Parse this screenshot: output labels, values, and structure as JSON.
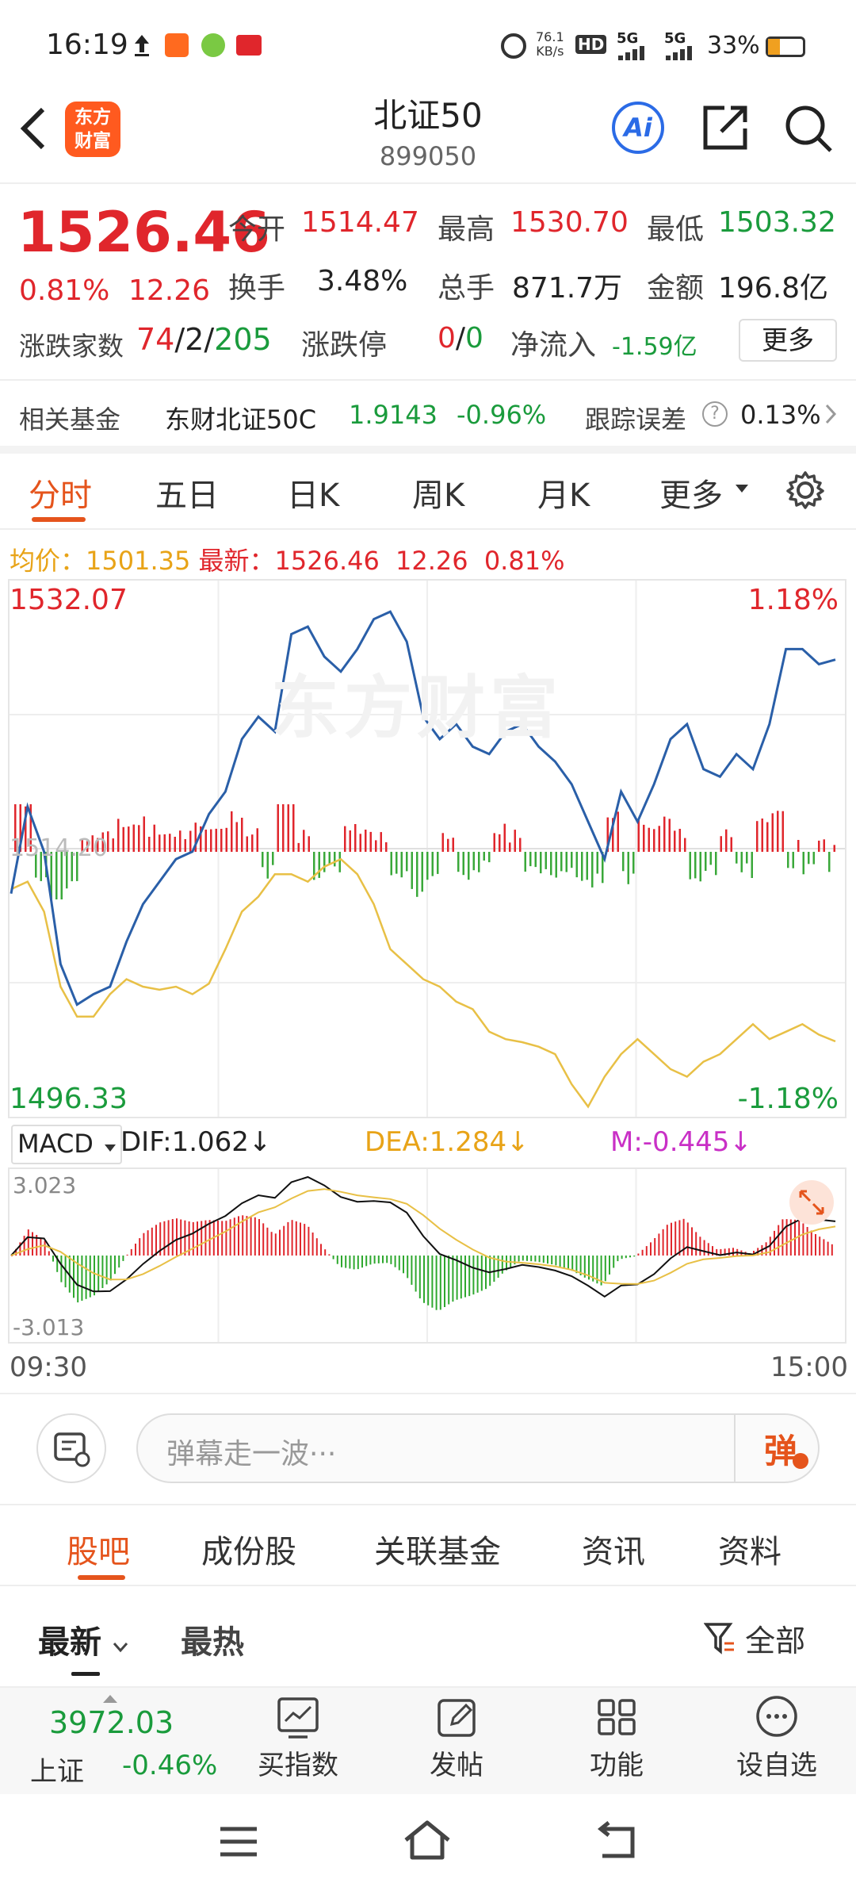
{
  "status_bar": {
    "time": "16:19",
    "net_speed_value": "76.1",
    "net_speed_unit": "KB/s",
    "hd": "HD",
    "signal1": "5G",
    "signal2": "5G",
    "battery": "33%"
  },
  "header": {
    "logo_line1": "东方",
    "logo_line2": "财富",
    "title": "北证50",
    "code": "899050",
    "ai_label": "Ai"
  },
  "quote": {
    "price": "1526.46",
    "change_pct": "0.81%",
    "change": "12.26",
    "open_label": "今开",
    "open": "1514.47",
    "high_label": "最高",
    "high": "1530.70",
    "low_label": "最低",
    "low": "1503.32",
    "turnover_label": "换手",
    "turnover": "3.48%",
    "volume_label": "总手",
    "volume": "871.7万",
    "amount_label": "金额",
    "amount": "196.8亿",
    "updown_label": "涨跌家数",
    "up_count": "74",
    "sep1": "/",
    "flat_count": "2",
    "sep2": "/",
    "down_count": "205",
    "limit_label": "涨跌停",
    "limit_up": "0",
    "limit_sep": "/",
    "limit_down": "0",
    "netflow_label": "净流入",
    "netflow": "-1.59亿",
    "more_label": "更多"
  },
  "fund": {
    "label": "相关基金",
    "name": "东财北证50C",
    "nav": "1.9143",
    "change": "-0.96%",
    "track_label": "跟踪误差",
    "track_value": "0.13%"
  },
  "chart_tabs": [
    "分时",
    "五日",
    "日K",
    "周K",
    "月K",
    "更多"
  ],
  "legend": {
    "avg_label": "均价：",
    "avg_value": "1501.35",
    "latest_label": "最新：",
    "latest_value": "1526.46",
    "latest_change": "12.26",
    "latest_pct": "0.81%"
  },
  "price_chart": {
    "y_max": "1532.07",
    "y_min": "1496.33",
    "pct_max": "1.18%",
    "pct_min": "-1.18%",
    "mid_label": "1514.20",
    "watermark": "东方财富"
  },
  "macd": {
    "name": "MACD",
    "dif": "DIF:1.062↓",
    "dea": "DEA:1.284↓",
    "m": "M:-0.445↓",
    "y_max": "3.023",
    "y_min": "-3.013",
    "x_start": "09:30",
    "x_end": "15:00"
  },
  "comment": {
    "placeholder": "弹幕走一波···",
    "send_label": "弹"
  },
  "section_tabs": [
    "股吧",
    "成份股",
    "关联基金",
    "资讯",
    "资料"
  ],
  "feed_tabs": {
    "latest": "最新",
    "hot": "最热",
    "filter": "全部"
  },
  "bottom_bar": {
    "index_value": "3972.03",
    "index_name": "上证",
    "index_change": "-0.46%",
    "buy_index": "买指数",
    "post": "发帖",
    "functions": "功能",
    "add_watch": "设自选"
  },
  "chart_data": {
    "type": "line",
    "x_range": [
      "09:30",
      "15:00"
    ],
    "ylim": [
      1496.33,
      1532.07
    ],
    "series": [
      {
        "values": [
          1511.2,
          1517.0,
          1514.0,
          1506.5,
          1503.8,
          1504.5,
          1505.0,
          1508.0,
          1510.5,
          1512.0,
          1513.5,
          1514.0,
          1516.5,
          1518.0,
          1521.5,
          1523.0,
          1522.0,
          1528.5,
          1529.0,
          1527.0,
          1526.0,
          1527.5,
          1529.5,
          1530.0,
          1528.0,
          1523.0,
          1521.5,
          1522.5,
          1521.0,
          1520.5,
          1522.0,
          1522.5,
          1521.0,
          1520.0,
          1518.5,
          1516.0,
          1513.5,
          1518.0,
          1516.0,
          1518.5,
          1521.5,
          1522.5,
          1519.5,
          1519.0,
          1520.5,
          1519.5,
          1522.5,
          1527.5,
          1527.5,
          1526.5,
          1526.8
        ]
      },
      {
        "values": [
          1511.5,
          1512.0,
          1510.0,
          1505.0,
          1503.0,
          1503.0,
          1504.5,
          1505.5,
          1505.0,
          1504.8,
          1505.0,
          1504.5,
          1505.2,
          1507.5,
          1510.0,
          1511.0,
          1512.5,
          1512.5,
          1512.0,
          1513.0,
          1513.5,
          1512.5,
          1510.5,
          1507.5,
          1506.5,
          1505.5,
          1505.0,
          1504.0,
          1503.5,
          1502.0,
          1501.5,
          1501.3,
          1501.0,
          1500.5,
          1498.5,
          1497.0,
          1499.0,
          1500.5,
          1501.5,
          1500.5,
          1499.5,
          1499.0,
          1500.0,
          1500.5,
          1501.5,
          1502.5,
          1501.5,
          1502.0,
          1502.5,
          1501.8,
          1501.35
        ]
      }
    ]
  }
}
